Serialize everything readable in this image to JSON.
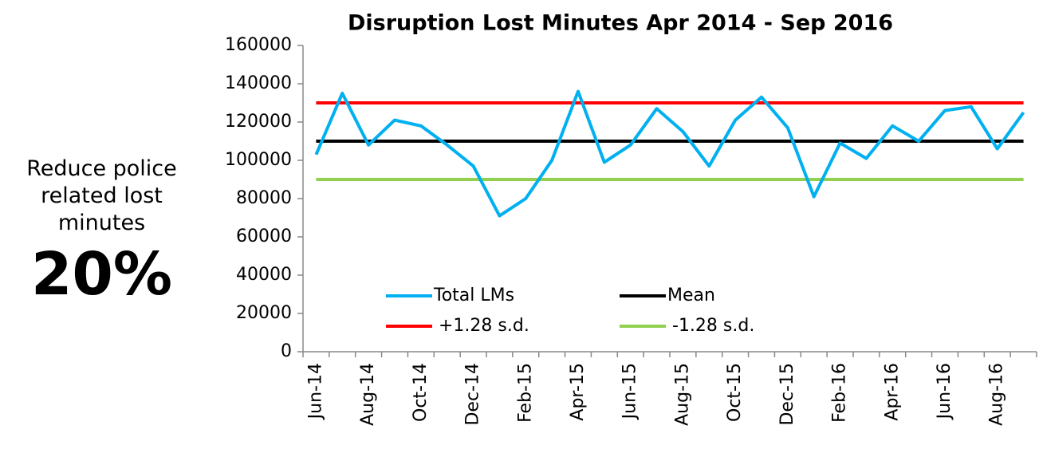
{
  "side_note": {
    "lines": [
      "Reduce police",
      "related lost",
      "minutes"
    ],
    "figure": "20%"
  },
  "chart_data": {
    "type": "line",
    "title": "Disruption Lost Minutes Apr 2014 - Sep 2016",
    "categories": [
      "Jun-14",
      null,
      "Aug-14",
      null,
      "Oct-14",
      null,
      "Dec-14",
      null,
      "Feb-15",
      null,
      "Apr-15",
      null,
      "Jun-15",
      null,
      "Aug-15",
      null,
      "Oct-15",
      null,
      "Dec-15",
      null,
      "Feb-16",
      null,
      "Apr-16",
      null,
      "Jun-16",
      null,
      "Aug-16",
      null
    ],
    "series": [
      {
        "name": "Total LMs",
        "color": "#00b0f0",
        "values": [
          103000,
          135000,
          108000,
          121000,
          118000,
          108000,
          97000,
          71000,
          80000,
          100000,
          136000,
          99000,
          108000,
          127000,
          115000,
          97000,
          121000,
          133000,
          117000,
          81000,
          109000,
          101000,
          118000,
          110000,
          126000,
          128000,
          106000,
          125000
        ]
      },
      {
        "name": "Mean",
        "color": "#000000",
        "values": [
          110000,
          110000,
          110000,
          110000,
          110000,
          110000,
          110000,
          110000,
          110000,
          110000,
          110000,
          110000,
          110000,
          110000,
          110000,
          110000,
          110000,
          110000,
          110000,
          110000,
          110000,
          110000,
          110000,
          110000,
          110000,
          110000,
          110000,
          110000
        ]
      },
      {
        "name": "+1.28 s.d.",
        "color": "#ff0000",
        "values": [
          130000,
          130000,
          130000,
          130000,
          130000,
          130000,
          130000,
          130000,
          130000,
          130000,
          130000,
          130000,
          130000,
          130000,
          130000,
          130000,
          130000,
          130000,
          130000,
          130000,
          130000,
          130000,
          130000,
          130000,
          130000,
          130000,
          130000,
          130000
        ]
      },
      {
        "name": "-1.28 s.d.",
        "color": "#92d050",
        "values": [
          90000,
          90000,
          90000,
          90000,
          90000,
          90000,
          90000,
          90000,
          90000,
          90000,
          90000,
          90000,
          90000,
          90000,
          90000,
          90000,
          90000,
          90000,
          90000,
          90000,
          90000,
          90000,
          90000,
          90000,
          90000,
          90000,
          90000,
          90000
        ]
      }
    ],
    "ylim": [
      0,
      160000
    ],
    "yticks": [
      0,
      20000,
      40000,
      60000,
      80000,
      100000,
      120000,
      140000,
      160000
    ],
    "grid": false,
    "legend": "lower center"
  }
}
